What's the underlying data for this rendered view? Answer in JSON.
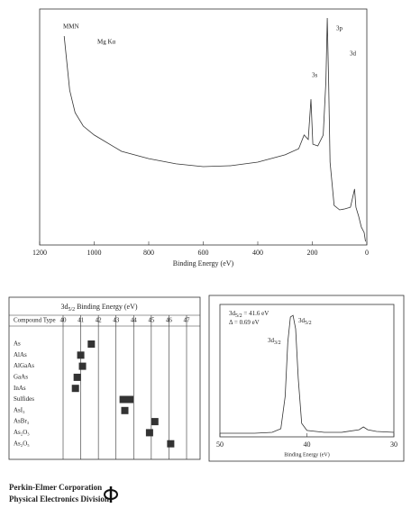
{
  "chart_data": [
    {
      "type": "line",
      "xlabel": "Binding Energy (eV)",
      "annotations": [
        "MMN",
        "Mg Kα",
        "3s",
        "3p",
        "3d"
      ],
      "x": [
        1110,
        1090,
        1070,
        1040,
        1000,
        900,
        800,
        700,
        600,
        500,
        400,
        300,
        250,
        230,
        215,
        205,
        198,
        180,
        160,
        150,
        145,
        140,
        135,
        120,
        100,
        80,
        60,
        45,
        40,
        30,
        20,
        10,
        5
      ],
      "series": [
        {
          "color": "#333333",
          "values": [
            88.5,
            65.6,
            56.1,
            50.4,
            46.6,
            39.7,
            36.6,
            34.4,
            33.2,
            33.6,
            35.1,
            38.2,
            40.8,
            46.6,
            44.7,
            61.8,
            42.7,
            42.0,
            46.6,
            69.5,
            96.2,
            69.5,
            35.1,
            16.8,
            14.9,
            15.3,
            16.0,
            23.7,
            16.0,
            12.2,
            7.6,
            5.3,
            1.5
          ]
        }
      ],
      "xlim": [
        1200,
        0
      ],
      "xticks": [
        1200,
        1000,
        800,
        600,
        400,
        200,
        0
      ],
      "ylim": [
        0,
        100
      ]
    },
    {
      "type": "dot",
      "title": [
        "3d",
        "5/2",
        " Binding Energy (eV)"
      ],
      "row_header": "Compound Type",
      "categories": [
        "As",
        "AlAs",
        "AlGaAs",
        "GaAs",
        "InAs",
        "Sulfides",
        "AsI₃",
        "AsBr₃",
        "As₂O₃",
        "As₂O₅"
      ],
      "values": [
        41.6,
        41.0,
        41.1,
        40.8,
        40.7,
        [
          43.2,
          44.0
        ],
        43.5,
        45.2,
        44.9,
        46.1
      ],
      "color": "#333333",
      "xlim": [
        40,
        47
      ],
      "xticks": [
        40,
        41,
        42,
        43,
        44,
        45,
        46,
        47
      ]
    },
    {
      "type": "line",
      "xlabel": "Binding Energy (eV)",
      "annotations": [
        [
          "3d",
          "5/2",
          " = 41.6 eV"
        ],
        [
          "Δ = 0.69 eV"
        ],
        [
          "3d",
          "3/2"
        ],
        [
          "3d",
          "5/2"
        ]
      ],
      "x": [
        50,
        46,
        44,
        43,
        42.5,
        42.2,
        41.9,
        41.6,
        41.3,
        41.0,
        40.6,
        40,
        38,
        36,
        34,
        33.5,
        33,
        32,
        30
      ],
      "series": [
        {
          "color": "#333333",
          "values": [
            2.7,
            2.7,
            3.4,
            6.1,
            30.6,
            71.4,
            90.5,
            91.8,
            81.6,
            44.2,
            10.2,
            4.8,
            3.4,
            3.4,
            5.4,
            7.5,
            5.4,
            4.1,
            3.4
          ]
        }
      ],
      "xlim": [
        50,
        30
      ],
      "xticks": [
        50,
        40,
        30
      ],
      "ylim": [
        0,
        100
      ]
    }
  ],
  "footer": {
    "company": "Perkin-Elmer Corporation",
    "division": "Physical Electronics Division"
  }
}
